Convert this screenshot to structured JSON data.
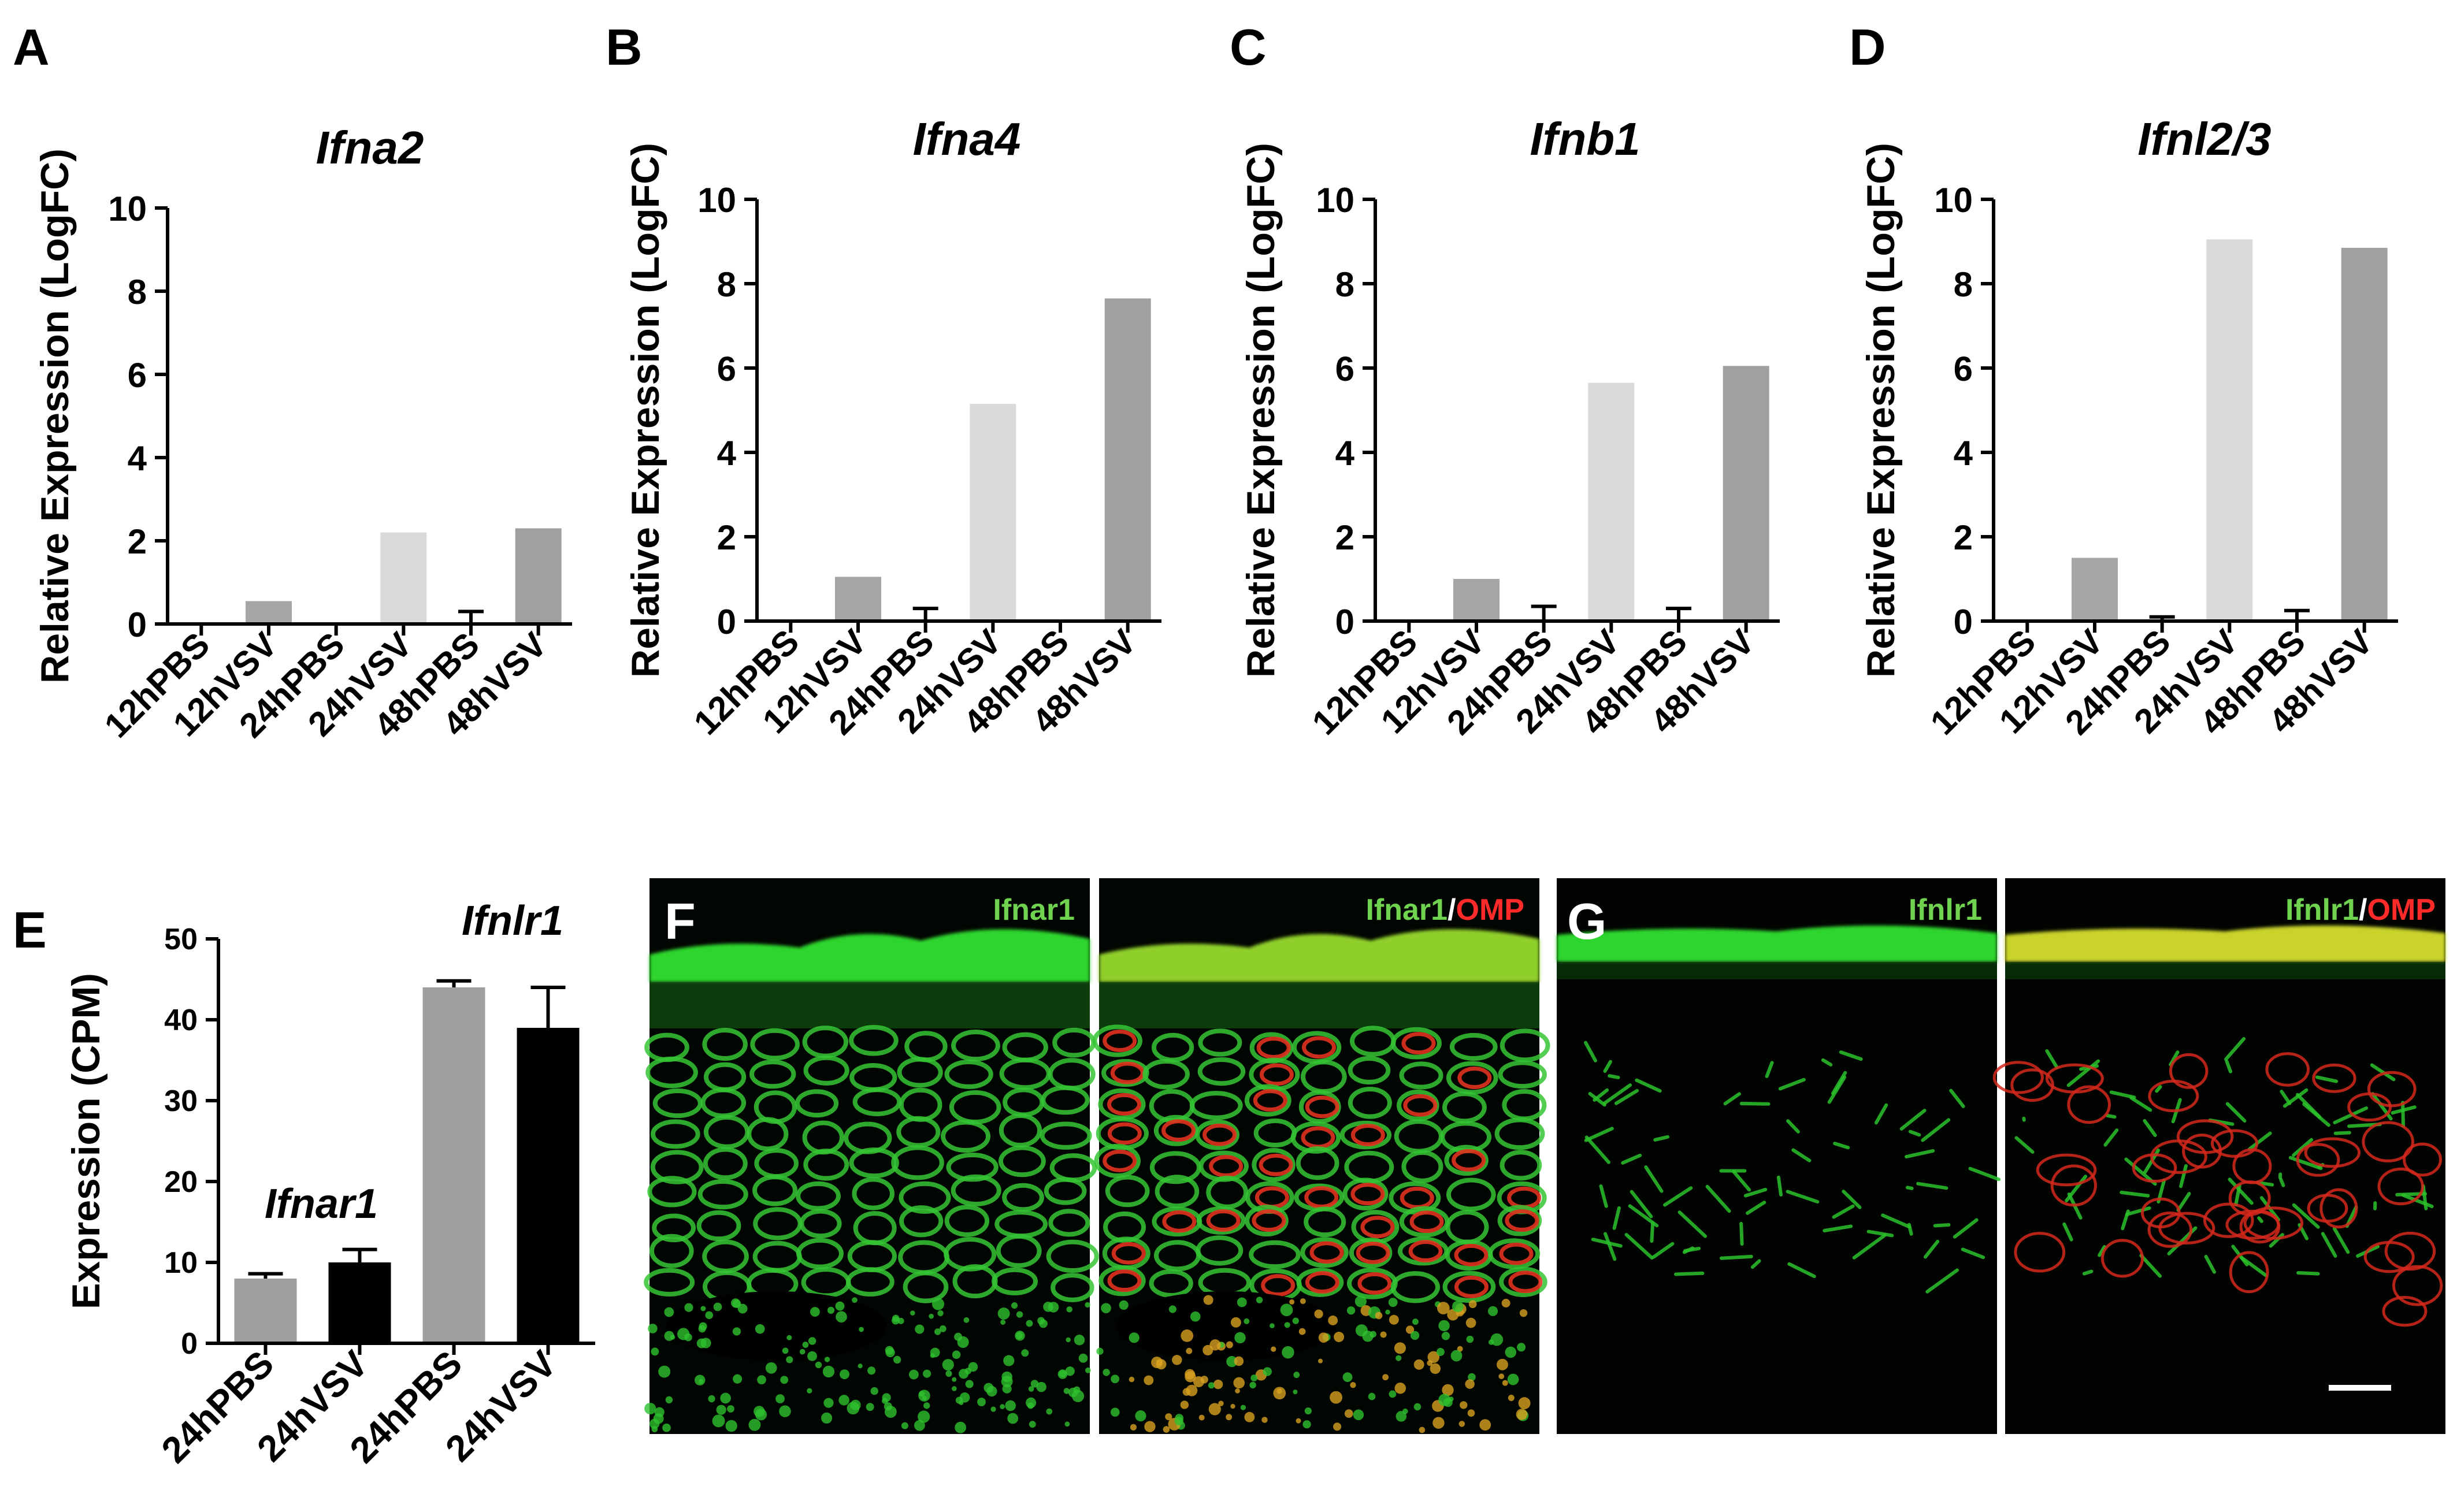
{
  "figure": {
    "panels": [
      {
        "id": "A",
        "letter": "A"
      },
      {
        "id": "B",
        "letter": "B"
      },
      {
        "id": "C",
        "letter": "C"
      },
      {
        "id": "D",
        "letter": "D"
      },
      {
        "id": "E",
        "letter": "E"
      },
      {
        "id": "F",
        "letter": "F"
      },
      {
        "id": "G",
        "letter": "G"
      }
    ]
  },
  "colors": {
    "PBS": "#a6a6a6",
    "VSV_12h": "#a6a6a6",
    "VSV_24h": "#d9d9d9",
    "VSV_48h": "#a0a0a0",
    "E_PBS": "#9f9f9f",
    "E_VSV": "#000000",
    "green_stain": "#3fd03f",
    "red_stain": "#e02a1e"
  },
  "chart_data": [
    {
      "panel": "A",
      "type": "bar",
      "title": "Ifna2",
      "ylabel": "Relative Expression (LogFC)",
      "xlabel": "",
      "ylim": [
        0,
        10
      ],
      "yticks": [
        0,
        2,
        4,
        6,
        8,
        10
      ],
      "categories": [
        "12hPBS",
        "12hVSV",
        "24hPBS",
        "24hVSV",
        "48hPBS",
        "48hVSV"
      ],
      "values": [
        0,
        0.55,
        0,
        2.2,
        0,
        2.3
      ],
      "errors": [
        0,
        0,
        0,
        0,
        0.3,
        0
      ],
      "bar_colors": [
        "#a6a6a6",
        "#a6a6a6",
        "#a6a6a6",
        "#d9d9d9",
        "#a6a6a6",
        "#a0a0a0"
      ]
    },
    {
      "panel": "B",
      "type": "bar",
      "title": "Ifna4",
      "ylabel": "Relative Expression (LogFC)",
      "xlabel": "",
      "ylim": [
        0,
        10
      ],
      "yticks": [
        0,
        2,
        4,
        6,
        8,
        10
      ],
      "categories": [
        "12hPBS",
        "12hVSV",
        "24hPBS",
        "24hVSV",
        "48hPBS",
        "48hVSV"
      ],
      "values": [
        0,
        1.05,
        0,
        5.15,
        0,
        7.65
      ],
      "errors": [
        0,
        0,
        0.3,
        0,
        0,
        0
      ],
      "bar_colors": [
        "#a6a6a6",
        "#a6a6a6",
        "#a6a6a6",
        "#d9d9d9",
        "#a6a6a6",
        "#a0a0a0"
      ]
    },
    {
      "panel": "C",
      "type": "bar",
      "title": "Ifnb1",
      "ylabel": "Relative Expression (LogFC)",
      "xlabel": "",
      "ylim": [
        0,
        10
      ],
      "yticks": [
        0,
        2,
        4,
        6,
        8,
        10
      ],
      "categories": [
        "12hPBS",
        "12hVSV",
        "24hPBS",
        "24hVSV",
        "48hPBS",
        "48hVSV"
      ],
      "values": [
        0,
        1.0,
        0,
        5.65,
        0,
        6.05
      ],
      "errors": [
        0,
        0,
        0.35,
        0,
        0.3,
        0
      ],
      "bar_colors": [
        "#a6a6a6",
        "#a6a6a6",
        "#a6a6a6",
        "#d9d9d9",
        "#a6a6a6",
        "#a0a0a0"
      ]
    },
    {
      "panel": "D",
      "type": "bar",
      "title": "Ifnl2/3",
      "ylabel": "Relative Expression (LogFC)",
      "xlabel": "",
      "ylim": [
        0,
        10
      ],
      "yticks": [
        0,
        2,
        4,
        6,
        8,
        10
      ],
      "categories": [
        "12hPBS",
        "12hVSV",
        "24hPBS",
        "24hVSV",
        "48hPBS",
        "48hVSV"
      ],
      "values": [
        0,
        1.5,
        0,
        9.05,
        0,
        8.85
      ],
      "errors": [
        0,
        0,
        0.1,
        0,
        0.25,
        0
      ],
      "bar_colors": [
        "#a6a6a6",
        "#a6a6a6",
        "#a6a6a6",
        "#d9d9d9",
        "#a6a6a6",
        "#a0a0a0"
      ]
    },
    {
      "panel": "E",
      "type": "bar",
      "title": "",
      "ylabel": "Expression (CPM)",
      "xlabel": "",
      "ylim": [
        0,
        50
      ],
      "yticks": [
        0,
        10,
        20,
        30,
        40,
        50
      ],
      "categories": [
        "24hPBS",
        "24hVSV",
        "24hPBS",
        "24hVSV"
      ],
      "groups": [
        "Ifnar1",
        "Ifnlr1"
      ],
      "values": [
        8,
        10,
        44,
        39
      ],
      "errors": [
        0.6,
        1.6,
        0.8,
        5.0
      ],
      "bar_colors": [
        "#9f9f9f",
        "#000000",
        "#9f9f9f",
        "#000000"
      ],
      "annotations": [
        "Ifnar1",
        "Ifnlr1"
      ]
    }
  ],
  "micrographs": {
    "F": {
      "left_label": "Ifnar1",
      "right_label_green": "Ifnar1",
      "right_label_sep": "/",
      "right_label_red": "OMP"
    },
    "G": {
      "left_label": "Ifnlr1",
      "right_label_green": "Ifnlr1",
      "right_label_sep": "/",
      "right_label_red": "OMP",
      "scale_bar": true
    }
  }
}
